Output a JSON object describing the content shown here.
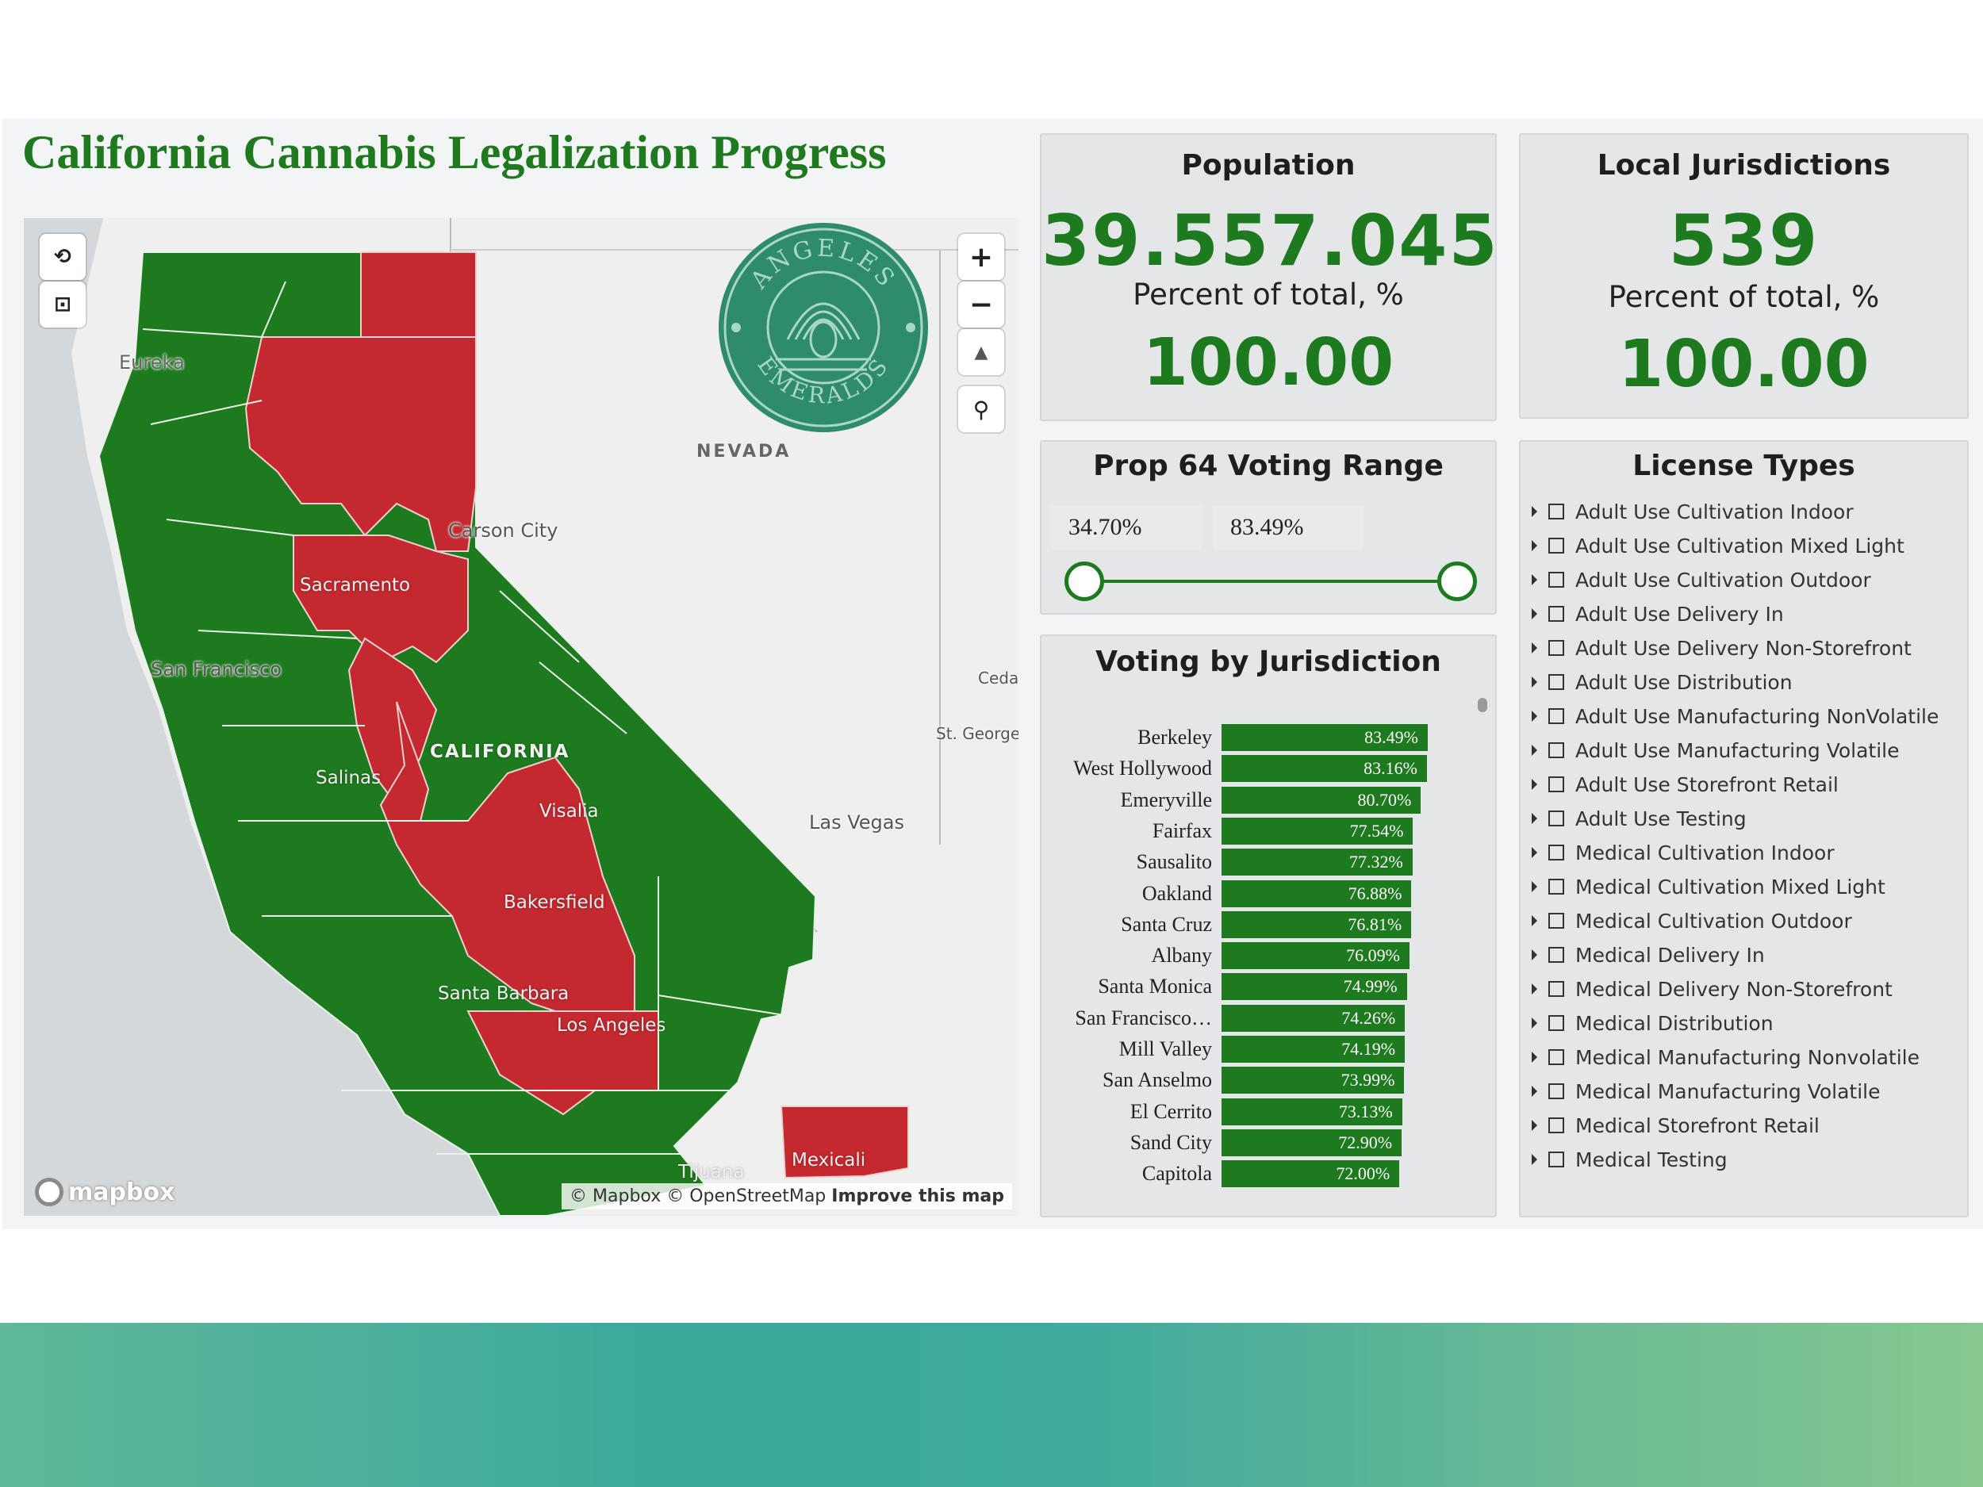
{
  "dashboard": {
    "title": "California Cannabis Legalization Progress"
  },
  "colors": {
    "legal": "#1e7a1e",
    "not_legal": "#c4292f",
    "accent": "#1e7a1e"
  },
  "map": {
    "labels": {
      "nevada": "NEVADA",
      "california": "CALIFORNIA",
      "eureka": "Eureka",
      "carson_city": "Carson City",
      "sacramento": "Sacramento",
      "san_francisco": "San Francisco",
      "salinas": "Salinas",
      "visalia": "Visalia",
      "bakersfield": "Bakersfield",
      "las_vegas": "Las Vegas",
      "st_george": "St. George",
      "ceda": "Ceda",
      "santa_barbara": "Santa Barbara",
      "los_angeles": "Los Angeles",
      "mexicali": "Mexicali",
      "tijuana": "Tijuana"
    },
    "attribution": {
      "mapbox": "© Mapbox",
      "osm": "© OpenStreetMap",
      "improve": "Improve this map"
    },
    "mapbox_logo": "mapbox",
    "controls": {
      "zoom_in": "+",
      "zoom_out": "−",
      "compass": "▲",
      "lasso_icon": "lasso-icon",
      "select_icon": "rect-select-icon",
      "search_icon": "magnifier-icon"
    }
  },
  "logo": {
    "top_text": "ANGELES",
    "bottom_text": "EMERALDS"
  },
  "population": {
    "title": "Population",
    "value": "39.557.045",
    "sub_label": "Percent of total, %",
    "percent": "100.00"
  },
  "jurisdictions": {
    "title": "Local Jurisdictions",
    "value": "539",
    "sub_label": "Percent of total, %",
    "percent": "100.00"
  },
  "voting_range": {
    "title": "Prop 64 Voting Range",
    "min": "34.70%",
    "max": "83.49%"
  },
  "voting_by_jurisdiction": {
    "title": "Voting by Jurisdiction",
    "rows": [
      {
        "name": "Berkeley",
        "label": "83.49%",
        "value": 83.49
      },
      {
        "name": "West Hollywood",
        "label": "83.16%",
        "value": 83.16
      },
      {
        "name": "Emeryville",
        "label": "80.70%",
        "value": 80.7
      },
      {
        "name": "Fairfax",
        "label": "77.54%",
        "value": 77.54
      },
      {
        "name": "Sausalito",
        "label": "77.32%",
        "value": 77.32
      },
      {
        "name": "Oakland",
        "label": "76.88%",
        "value": 76.88
      },
      {
        "name": "Santa Cruz",
        "label": "76.81%",
        "value": 76.81
      },
      {
        "name": "Albany",
        "label": "76.09%",
        "value": 76.09
      },
      {
        "name": "Santa Monica",
        "label": "74.99%",
        "value": 74.99
      },
      {
        "name": "San Francisco…",
        "label": "74.26%",
        "value": 74.26
      },
      {
        "name": "Mill Valley",
        "label": "74.19%",
        "value": 74.19
      },
      {
        "name": "San Anselmo",
        "label": "73.99%",
        "value": 73.99
      },
      {
        "name": "El Cerrito",
        "label": "73.13%",
        "value": 73.13
      },
      {
        "name": "Sand City",
        "label": "72.90%",
        "value": 72.9
      },
      {
        "name": "Capitola",
        "label": "72.00%",
        "value": 72.0
      }
    ]
  },
  "license_types": {
    "title": "License Types",
    "items": [
      "Adult Use Cultivation Indoor",
      "Adult Use Cultivation Mixed Light",
      "Adult Use Cultivation Outdoor",
      "Adult Use Delivery In",
      "Adult Use Delivery Non-Storefront",
      "Adult Use Distribution",
      "Adult Use Manufacturing NonVolatile",
      "Adult Use Manufacturing Volatile",
      "Adult Use Storefront Retail",
      "Adult Use Testing",
      "Medical Cultivation Indoor",
      "Medical Cultivation Mixed Light",
      "Medical Cultivation Outdoor",
      "Medical Delivery In",
      "Medical Delivery Non-Storefront",
      "Medical Distribution",
      "Medical Manufacturing Nonvolatile",
      "Medical Manufacturing Volatile",
      "Medical Storefront Retail",
      "Medical Testing"
    ]
  }
}
